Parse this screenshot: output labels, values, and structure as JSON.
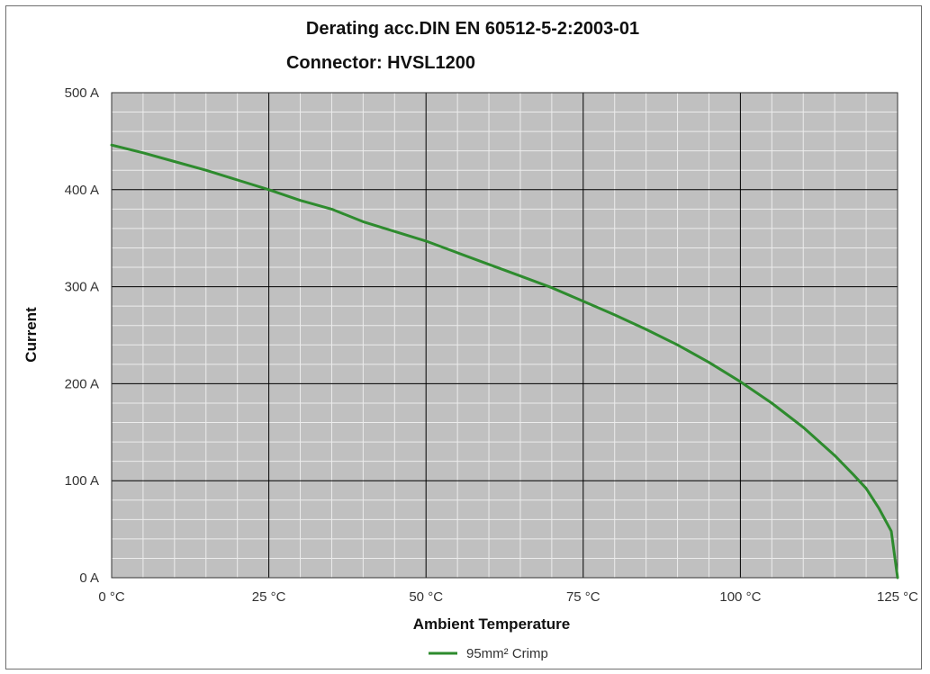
{
  "chart_data": {
    "type": "line",
    "title_lines": [
      "Derating acc.DIN EN 60512-5-2:2003-01",
      "Connector: HVSL1200"
    ],
    "xlabel": "Ambient Temperature",
    "ylabel": "Current",
    "xlim": [
      0,
      125
    ],
    "ylim": [
      0,
      500
    ],
    "x_ticks": [
      {
        "value": 0,
        "label": "0 °C"
      },
      {
        "value": 25,
        "label": "25 °C"
      },
      {
        "value": 50,
        "label": "50 °C"
      },
      {
        "value": 75,
        "label": "75 °C"
      },
      {
        "value": 100,
        "label": "100 °C"
      },
      {
        "value": 125,
        "label": "125 °C"
      }
    ],
    "y_ticks": [
      {
        "value": 0,
        "label": "0 A"
      },
      {
        "value": 100,
        "label": "100 A"
      },
      {
        "value": 200,
        "label": "200 A"
      },
      {
        "value": 300,
        "label": "300 A"
      },
      {
        "value": 400,
        "label": "400 A"
      },
      {
        "value": 500,
        "label": "500 A"
      }
    ],
    "grid": {
      "major": true,
      "minor": true,
      "minor_x_step": 5,
      "minor_y_step": 20
    },
    "legend_position": "bottom-center",
    "colors": {
      "plot_background": "#c0c0c0",
      "major_grid": "#000000",
      "minor_grid": "#ececec",
      "series": "#2e8b2e"
    },
    "series": [
      {
        "name": "95mm² Crimp",
        "color": "#2e8b2e",
        "x": [
          0,
          5,
          10,
          15,
          20,
          25,
          30,
          35,
          40,
          45,
          50,
          55,
          60,
          65,
          70,
          75,
          80,
          85,
          90,
          95,
          100,
          105,
          110,
          115,
          118,
          120,
          122,
          124,
          125
        ],
        "y": [
          446,
          438,
          429,
          420,
          410,
          400,
          389,
          380,
          367,
          357,
          347,
          335,
          323,
          311,
          299,
          285,
          271,
          256,
          240,
          222,
          202,
          180,
          155,
          126,
          106,
          92,
          72,
          48,
          0
        ]
      }
    ]
  }
}
